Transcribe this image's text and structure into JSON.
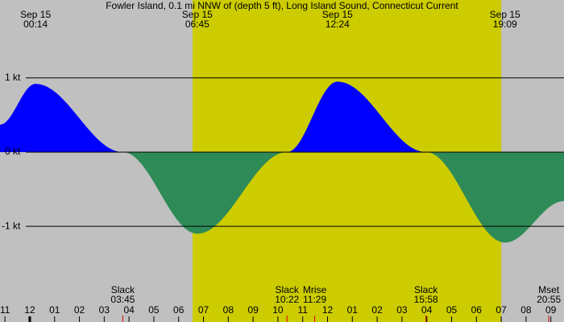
{
  "chart_data": {
    "type": "area",
    "title": "Fowler Island, 0.1 mi NNW of (depth 5 ft), Long Island Sound, Connecticut Current",
    "xlim": [
      -1.2,
      21.53
    ],
    "xticks": [
      {
        "value": -1,
        "label": "11"
      },
      {
        "value": 0,
        "label": "12"
      },
      {
        "value": 1,
        "label": "01"
      },
      {
        "value": 2,
        "label": "02"
      },
      {
        "value": 3,
        "label": "03"
      },
      {
        "value": 4,
        "label": "04"
      },
      {
        "value": 5,
        "label": "05"
      },
      {
        "value": 6,
        "label": "06"
      },
      {
        "value": 7,
        "label": "07"
      },
      {
        "value": 8,
        "label": "08"
      },
      {
        "value": 9,
        "label": "09"
      },
      {
        "value": 10,
        "label": "10"
      },
      {
        "value": 11,
        "label": "11"
      },
      {
        "value": 12,
        "label": "12"
      },
      {
        "value": 13,
        "label": "01"
      },
      {
        "value": 14,
        "label": "02"
      },
      {
        "value": 15,
        "label": "03"
      },
      {
        "value": 16,
        "label": "04"
      },
      {
        "value": 17,
        "label": "05"
      },
      {
        "value": 18,
        "label": "06"
      },
      {
        "value": 19,
        "label": "07"
      },
      {
        "value": 20,
        "label": "08"
      },
      {
        "value": 21,
        "label": "09"
      }
    ],
    "ylim": [
      -2.29,
      2.05
    ],
    "yticks": [
      {
        "value": 1,
        "label": "1 kt"
      },
      {
        "value": 0,
        "label": "0 kt"
      },
      {
        "value": -1,
        "label": "-1 kt"
      }
    ],
    "grid": true,
    "x": [
      -1.2,
      0.23,
      3.75,
      6.75,
      10.37,
      12.4,
      15.97,
      19.15,
      21.53
    ],
    "values": [
      0.37,
      0.92,
      0,
      -1.1,
      0,
      0.95,
      0,
      -1.22,
      -0.66
    ],
    "flood_color": "#0000ff",
    "ebb_color": "#2e8b57",
    "daylight": [
      6.56,
      19.0
    ],
    "daylight_color": "#cccc00",
    "background_color": "#c0c0c0",
    "peaks": [
      {
        "date": "Sep 15",
        "time": "00:14"
      },
      {
        "date": "Sep 15",
        "time": "06:45"
      },
      {
        "date": "Sep 15",
        "time": "12:24"
      },
      {
        "date": "Sep 15",
        "time": "19:09"
      }
    ],
    "events": [
      {
        "label": "Slack",
        "time": "03:45"
      },
      {
        "label": "Slack",
        "time": "10:22"
      },
      {
        "label": "Mrise",
        "time": "11:29"
      },
      {
        "label": "Slack",
        "time": "15:58"
      },
      {
        "label": "Mset",
        "time": "20:55"
      }
    ]
  }
}
